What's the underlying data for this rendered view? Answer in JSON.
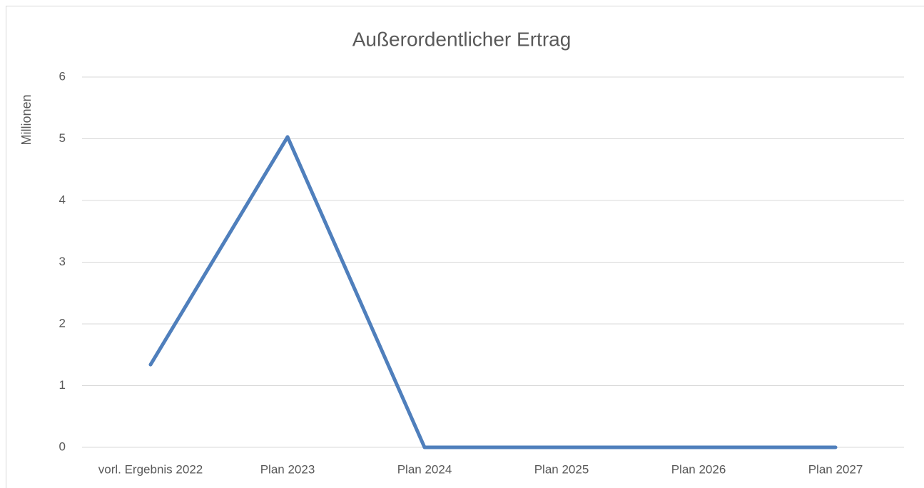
{
  "chart_data": {
    "type": "line",
    "title": "Außerordentlicher Ertrag",
    "y_label": "Millionen",
    "categories": [
      "vorl. Ergebnis 2022",
      "Plan 2023",
      "Plan 2024",
      "Plan 2025",
      "Plan 2026",
      "Plan 2027"
    ],
    "series": [
      {
        "name": "Außerordentlicher Ertrag",
        "color": "#4f7fbc",
        "values": [
          1.34,
          5.03,
          0,
          0,
          0,
          0
        ]
      }
    ],
    "ylim": [
      0,
      6
    ],
    "yticks": [
      0,
      1,
      2,
      3,
      4,
      5,
      6
    ],
    "grid": true
  }
}
